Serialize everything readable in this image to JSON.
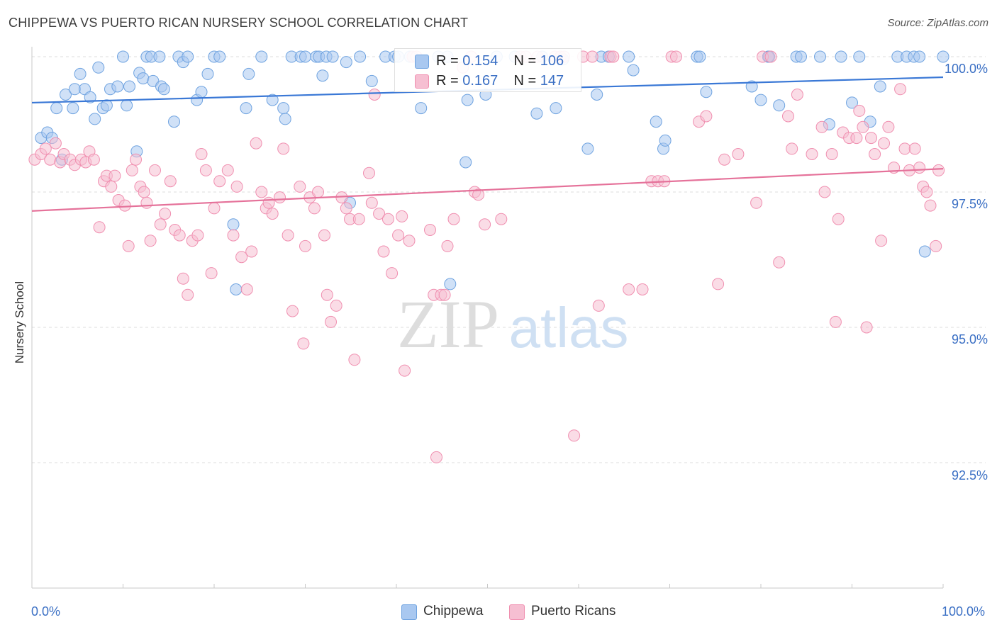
{
  "title": "CHIPPEWA VS PUERTO RICAN NURSERY SCHOOL CORRELATION CHART",
  "source": "Source: ZipAtlas.com",
  "watermark": {
    "zip": "ZIP",
    "atlas": "atlas"
  },
  "legend_stats": [
    {
      "r_label": "R = ",
      "r_value": "0.154",
      "n_label": "N = ",
      "n_value": "106"
    },
    {
      "r_label": "R = ",
      "r_value": "0.167",
      "n_label": "N = ",
      "n_value": "147"
    }
  ],
  "legend_bottom": [
    "Chippewa",
    "Puerto Ricans"
  ],
  "x_tick_labels": {
    "left": "0.0%",
    "right": "100.0%"
  },
  "y_tick_labels": [
    "100.0%",
    "97.5%",
    "95.0%",
    "92.5%"
  ],
  "chart_data": {
    "type": "scatter",
    "title": "CHIPPEWA VS PUERTO RICAN NURSERY SCHOOL CORRELATION CHART",
    "xlabel": "",
    "ylabel": "Nursery School",
    "xlim": [
      0,
      100
    ],
    "ylim": [
      90.2,
      100.4
    ],
    "y_ticks": [
      100.0,
      97.5,
      95.0,
      92.5
    ],
    "grid": true,
    "legend": "top-center",
    "series": [
      {
        "name": "Chippewa",
        "color": "#6fa3e0",
        "fill": "#a9c8f0",
        "r": 0.154,
        "n": 106,
        "trend": {
          "x": [
            0,
            100
          ],
          "y": [
            99.15,
            99.62
          ]
        },
        "points": [
          [
            1,
            98.5
          ],
          [
            1.7,
            98.6
          ],
          [
            2.2,
            98.5
          ],
          [
            2.7,
            99.05
          ],
          [
            3.3,
            98.1
          ],
          [
            3.7,
            99.3
          ],
          [
            4.5,
            99.05
          ],
          [
            4.7,
            99.4
          ],
          [
            5.3,
            99.68
          ],
          [
            5.8,
            99.4
          ],
          [
            6.4,
            99.25
          ],
          [
            6.9,
            98.85
          ],
          [
            7.3,
            99.8
          ],
          [
            7.8,
            99.05
          ],
          [
            8.2,
            99.1
          ],
          [
            8.6,
            99.4
          ],
          [
            9.4,
            99.45
          ],
          [
            10,
            100
          ],
          [
            10.4,
            99.1
          ],
          [
            10.7,
            99.45
          ],
          [
            11.5,
            98.25
          ],
          [
            11.8,
            99.7
          ],
          [
            12.2,
            99.6
          ],
          [
            12.6,
            100
          ],
          [
            13.1,
            100
          ],
          [
            13.3,
            99.55
          ],
          [
            14,
            100
          ],
          [
            14.2,
            99.45
          ],
          [
            14.5,
            99.4
          ],
          [
            15.6,
            98.8
          ],
          [
            16.1,
            100
          ],
          [
            16.6,
            99.9
          ],
          [
            17.1,
            100
          ],
          [
            18.1,
            99.2
          ],
          [
            18.6,
            99.35
          ],
          [
            19.3,
            99.68
          ],
          [
            20,
            100
          ],
          [
            20.6,
            100
          ],
          [
            22.1,
            96.9
          ],
          [
            22.4,
            95.7
          ],
          [
            23.5,
            99.05
          ],
          [
            23.8,
            99.68
          ],
          [
            25.2,
            100
          ],
          [
            26.4,
            99.2
          ],
          [
            27.6,
            99.05
          ],
          [
            27.8,
            98.85
          ],
          [
            28.5,
            100
          ],
          [
            29.5,
            100
          ],
          [
            30,
            100
          ],
          [
            31.2,
            100
          ],
          [
            31.5,
            100
          ],
          [
            31.9,
            99.65
          ],
          [
            32.3,
            100
          ],
          [
            33,
            100
          ],
          [
            34.5,
            99.9
          ],
          [
            34.9,
            97.3
          ],
          [
            36,
            100
          ],
          [
            37.3,
            99.55
          ],
          [
            38.8,
            100
          ],
          [
            39.8,
            100
          ],
          [
            40.2,
            100
          ],
          [
            41.5,
            100
          ],
          [
            42.7,
            99.05
          ],
          [
            44.6,
            100
          ],
          [
            45.6,
            100
          ],
          [
            45.9,
            95.8
          ],
          [
            47.6,
            98.05
          ],
          [
            47.8,
            99.2
          ],
          [
            49.8,
            99.3
          ],
          [
            51,
            100
          ],
          [
            53,
            100
          ],
          [
            55.4,
            98.95
          ],
          [
            56,
            100
          ],
          [
            57.5,
            99.05
          ],
          [
            58.3,
            99.95
          ],
          [
            61,
            98.3
          ],
          [
            62,
            99.3
          ],
          [
            62.5,
            100
          ],
          [
            63.3,
            100
          ],
          [
            65.5,
            100
          ],
          [
            66,
            99.75
          ],
          [
            68.5,
            98.8
          ],
          [
            69.3,
            98.3
          ],
          [
            69.5,
            98.45
          ],
          [
            73,
            100
          ],
          [
            73.3,
            100
          ],
          [
            74,
            99.35
          ],
          [
            79,
            99.45
          ],
          [
            80,
            99.2
          ],
          [
            80.8,
            100
          ],
          [
            80.9,
            100
          ],
          [
            82,
            99.1
          ],
          [
            83.9,
            100
          ],
          [
            84.4,
            100
          ],
          [
            86.5,
            100
          ],
          [
            87.5,
            98.75
          ],
          [
            88.8,
            100
          ],
          [
            90,
            99.15
          ],
          [
            90.8,
            100
          ],
          [
            92,
            98.8
          ],
          [
            93.1,
            99.45
          ],
          [
            95,
            100
          ],
          [
            96,
            100
          ],
          [
            96.8,
            100
          ],
          [
            97.4,
            100
          ],
          [
            98,
            96.4
          ],
          [
            100,
            100
          ]
        ]
      },
      {
        "name": "Puerto Ricans",
        "color": "#f08fb0",
        "fill": "#f6bfd2",
        "r": 0.167,
        "n": 147,
        "trend": {
          "x": [
            0,
            100
          ],
          "y": [
            97.15,
            97.93
          ]
        },
        "points": [
          [
            0.3,
            98.1
          ],
          [
            1,
            98.2
          ],
          [
            1.5,
            98.3
          ],
          [
            2,
            98.1
          ],
          [
            2.6,
            98.4
          ],
          [
            3.1,
            98.05
          ],
          [
            3.5,
            98.2
          ],
          [
            4.2,
            98.1
          ],
          [
            4.7,
            98.0
          ],
          [
            5.4,
            98.1
          ],
          [
            5.9,
            98.05
          ],
          [
            6.3,
            98.25
          ],
          [
            6.8,
            98.1
          ],
          [
            7.4,
            96.85
          ],
          [
            7.9,
            97.7
          ],
          [
            8.2,
            97.8
          ],
          [
            8.7,
            97.6
          ],
          [
            9.1,
            97.8
          ],
          [
            9.5,
            97.35
          ],
          [
            10.2,
            97.25
          ],
          [
            10.6,
            96.5
          ],
          [
            11,
            97.9
          ],
          [
            11.4,
            98.1
          ],
          [
            11.9,
            97.6
          ],
          [
            12.3,
            97.5
          ],
          [
            12.6,
            97.3
          ],
          [
            13,
            96.6
          ],
          [
            13.5,
            97.9
          ],
          [
            14.1,
            96.9
          ],
          [
            14.6,
            97.1
          ],
          [
            15.2,
            97.7
          ],
          [
            15.7,
            96.8
          ],
          [
            16.2,
            96.7
          ],
          [
            16.6,
            95.9
          ],
          [
            17.1,
            95.6
          ],
          [
            17.6,
            96.6
          ],
          [
            18.2,
            96.7
          ],
          [
            18.6,
            98.2
          ],
          [
            19.1,
            97.9
          ],
          [
            19.7,
            96.0
          ],
          [
            20,
            97.2
          ],
          [
            20.6,
            97.7
          ],
          [
            21.5,
            97.9
          ],
          [
            22.1,
            96.7
          ],
          [
            22.5,
            97.6
          ],
          [
            23,
            96.3
          ],
          [
            23.6,
            95.7
          ],
          [
            24.1,
            96.4
          ],
          [
            24.6,
            98.4
          ],
          [
            25.2,
            97.5
          ],
          [
            25.7,
            97.2
          ],
          [
            26,
            97.3
          ],
          [
            26.4,
            97.1
          ],
          [
            27.2,
            97.4
          ],
          [
            27.6,
            98.3
          ],
          [
            28.1,
            96.7
          ],
          [
            28.6,
            95.3
          ],
          [
            29.4,
            97.6
          ],
          [
            29.8,
            94.7
          ],
          [
            30,
            96.5
          ],
          [
            30.5,
            97.4
          ],
          [
            31,
            97.2
          ],
          [
            31.4,
            97.5
          ],
          [
            32.1,
            96.7
          ],
          [
            32.4,
            95.6
          ],
          [
            32.8,
            95.1
          ],
          [
            33.4,
            95.4
          ],
          [
            34,
            97.4
          ],
          [
            34.5,
            97.2
          ],
          [
            34.9,
            97.0
          ],
          [
            35.4,
            94.4
          ],
          [
            35.9,
            97.0
          ],
          [
            37,
            97.85
          ],
          [
            37.3,
            97.3
          ],
          [
            37.6,
            99.3
          ],
          [
            38.1,
            97.1
          ],
          [
            38.6,
            96.4
          ],
          [
            39.1,
            97.0
          ],
          [
            39.5,
            96.0
          ],
          [
            40.2,
            96.7
          ],
          [
            40.6,
            97.05
          ],
          [
            40.9,
            94.2
          ],
          [
            41.4,
            96.6
          ],
          [
            41.8,
            100
          ],
          [
            42.2,
            100
          ],
          [
            43.7,
            96.8
          ],
          [
            44.1,
            95.6
          ],
          [
            44.4,
            92.6
          ],
          [
            44.9,
            95.6
          ],
          [
            45.3,
            95.6
          ],
          [
            45.6,
            96.5
          ],
          [
            46.3,
            97.0
          ],
          [
            47.3,
            99.8
          ],
          [
            48.2,
            100
          ],
          [
            48.6,
            97.5
          ],
          [
            49,
            97.45
          ],
          [
            49.7,
            96.9
          ],
          [
            51.5,
            97.0
          ],
          [
            53.6,
            100
          ],
          [
            54.2,
            100
          ],
          [
            55.5,
            100
          ],
          [
            57.4,
            100
          ],
          [
            58,
            100
          ],
          [
            58,
            100
          ],
          [
            58.4,
            100
          ],
          [
            59.5,
            93.0
          ],
          [
            60.5,
            100
          ],
          [
            61.5,
            100
          ],
          [
            62.2,
            95.4
          ],
          [
            63.5,
            100
          ],
          [
            63.8,
            100
          ],
          [
            65.5,
            95.7
          ],
          [
            67,
            95.7
          ],
          [
            68,
            97.7
          ],
          [
            68.7,
            97.7
          ],
          [
            69.4,
            97.7
          ],
          [
            70.2,
            100
          ],
          [
            70.7,
            100
          ],
          [
            73.2,
            98.8
          ],
          [
            74,
            98.9
          ],
          [
            75.3,
            95.8
          ],
          [
            76,
            98.1
          ],
          [
            77.5,
            98.2
          ],
          [
            79.5,
            97.3
          ],
          [
            80.2,
            100
          ],
          [
            81.1,
            100
          ],
          [
            82,
            96.2
          ],
          [
            83,
            98.9
          ],
          [
            83.4,
            98.3
          ],
          [
            84,
            99.3
          ],
          [
            85.6,
            98.2
          ],
          [
            86.7,
            98.7
          ],
          [
            87,
            97.5
          ],
          [
            87.8,
            98.2
          ],
          [
            88.2,
            95.1
          ],
          [
            88.5,
            97.0
          ],
          [
            89,
            98.6
          ],
          [
            89.7,
            98.5
          ],
          [
            90.5,
            98.5
          ],
          [
            90.8,
            99.0
          ],
          [
            91.2,
            98.7
          ],
          [
            91.6,
            95.0
          ],
          [
            92.1,
            98.5
          ],
          [
            92.5,
            98.2
          ],
          [
            93.2,
            96.6
          ],
          [
            93.5,
            98.4
          ],
          [
            94,
            98.7
          ],
          [
            94.6,
            97.95
          ],
          [
            95.3,
            99.4
          ],
          [
            95.8,
            98.3
          ],
          [
            96.3,
            97.9
          ],
          [
            96.9,
            98.3
          ],
          [
            97.4,
            97.95
          ],
          [
            97.8,
            97.6
          ],
          [
            98.2,
            97.5
          ],
          [
            98.6,
            97.25
          ],
          [
            99.2,
            96.5
          ],
          [
            99.5,
            97.9
          ]
        ]
      }
    ]
  }
}
